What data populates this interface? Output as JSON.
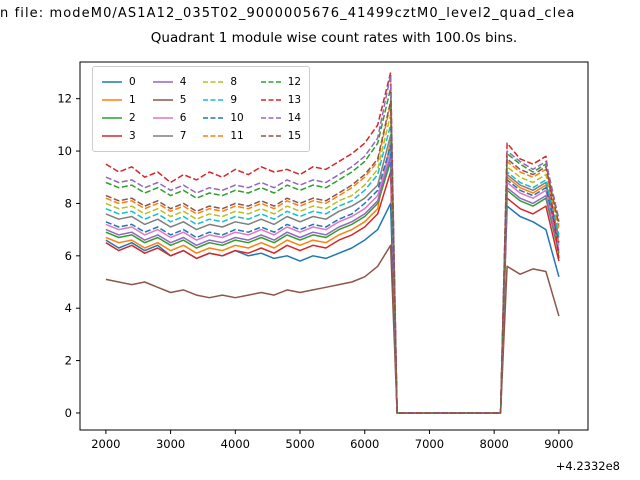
{
  "header": {
    "file_line": "n file: modeM0/AS1A12_035T02_9000005676_41499cztM0_level2_quad_clea",
    "title": "Quadrant 1 module wise count rates with 100.0s bins."
  },
  "chart_data": {
    "type": "line",
    "title": "Quadrant 1 module wise count rates with 100.0s bins.",
    "xlabel": "",
    "ylabel": "",
    "x_offset_label": "+4.2332e8",
    "xlim": [
      1600,
      9450
    ],
    "ylim": [
      -0.65,
      13.4
    ],
    "xticks": [
      2000,
      3000,
      4000,
      5000,
      6000,
      7000,
      8000,
      9000
    ],
    "yticks": [
      0,
      2,
      4,
      6,
      8,
      10,
      12
    ],
    "grid": false,
    "legend_position": "upper left",
    "legend_columns": 4,
    "x": [
      2000,
      2200,
      2400,
      2600,
      2800,
      3000,
      3200,
      3400,
      3600,
      3800,
      4000,
      4200,
      4400,
      4600,
      4800,
      5000,
      5200,
      5400,
      5600,
      5800,
      6000,
      6200,
      6400,
      6500,
      6600,
      6800,
      7000,
      7200,
      7400,
      7600,
      7800,
      8000,
      8100,
      8200,
      8400,
      8600,
      8800,
      9000
    ],
    "series": [
      {
        "name": "0",
        "color": "#1f77b4",
        "dash": false,
        "values": [
          6.6,
          6.3,
          6.5,
          6.2,
          6.4,
          6.0,
          6.2,
          5.9,
          6.1,
          6.0,
          6.2,
          6.0,
          6.1,
          5.9,
          6.0,
          5.8,
          6.0,
          5.9,
          6.1,
          6.3,
          6.6,
          7.0,
          8.0,
          0,
          0,
          0,
          0,
          0,
          0,
          0,
          0,
          0,
          0,
          7.9,
          7.5,
          7.3,
          7.0,
          5.2
        ]
      },
      {
        "name": "1",
        "color": "#ff7f0e",
        "dash": false,
        "values": [
          6.7,
          6.5,
          6.6,
          6.3,
          6.5,
          6.2,
          6.4,
          6.1,
          6.3,
          6.2,
          6.4,
          6.3,
          6.5,
          6.3,
          6.6,
          6.4,
          6.6,
          6.5,
          6.8,
          7.0,
          7.3,
          7.8,
          10.4,
          0,
          0,
          0,
          0,
          0,
          0,
          0,
          0,
          0,
          0,
          9.0,
          8.6,
          8.4,
          8.7,
          6.5
        ]
      },
      {
        "name": "2",
        "color": "#2ca02c",
        "dash": false,
        "values": [
          6.9,
          6.7,
          6.8,
          6.5,
          6.7,
          6.4,
          6.6,
          6.3,
          6.5,
          6.4,
          6.6,
          6.5,
          6.7,
          6.5,
          6.8,
          6.6,
          6.8,
          6.7,
          7.0,
          7.2,
          7.5,
          8.0,
          9.6,
          0,
          0,
          0,
          0,
          0,
          0,
          0,
          0,
          0,
          0,
          8.5,
          8.1,
          7.9,
          8.2,
          6.1
        ]
      },
      {
        "name": "3",
        "color": "#d62728",
        "dash": false,
        "values": [
          6.5,
          6.2,
          6.4,
          6.1,
          6.3,
          6.0,
          6.2,
          5.9,
          6.1,
          6.0,
          6.2,
          6.1,
          6.3,
          6.1,
          6.4,
          6.2,
          6.4,
          6.3,
          6.6,
          6.8,
          7.1,
          7.6,
          9.2,
          0,
          0,
          0,
          0,
          0,
          0,
          0,
          0,
          0,
          0,
          8.2,
          7.8,
          7.6,
          7.9,
          5.8
        ]
      },
      {
        "name": "4",
        "color": "#9467bd",
        "dash": false,
        "values": [
          7.0,
          6.8,
          6.9,
          6.6,
          6.8,
          6.5,
          6.7,
          6.4,
          6.6,
          6.5,
          6.7,
          6.6,
          6.8,
          6.6,
          6.9,
          6.7,
          6.9,
          6.8,
          7.1,
          7.3,
          7.6,
          8.1,
          9.8,
          0,
          0,
          0,
          0,
          0,
          0,
          0,
          0,
          0,
          0,
          8.6,
          8.2,
          8.0,
          8.3,
          6.2
        ]
      },
      {
        "name": "5",
        "color": "#8c564b",
        "dash": false,
        "values": [
          5.1,
          5.0,
          4.9,
          5.0,
          4.8,
          4.6,
          4.7,
          4.5,
          4.4,
          4.5,
          4.4,
          4.5,
          4.6,
          4.5,
          4.7,
          4.6,
          4.7,
          4.8,
          4.9,
          5.0,
          5.2,
          5.6,
          6.4,
          0,
          0,
          0,
          0,
          0,
          0,
          0,
          0,
          0,
          0,
          5.6,
          5.3,
          5.5,
          5.4,
          3.7
        ]
      },
      {
        "name": "6",
        "color": "#e377c2",
        "dash": false,
        "values": [
          7.2,
          7.0,
          7.1,
          6.8,
          7.0,
          6.7,
          6.9,
          6.6,
          6.8,
          6.7,
          6.9,
          6.8,
          7.0,
          6.8,
          7.1,
          6.9,
          7.1,
          7.0,
          7.3,
          7.5,
          7.8,
          8.3,
          10.0,
          0,
          0,
          0,
          0,
          0,
          0,
          0,
          0,
          0,
          0,
          8.8,
          8.4,
          8.2,
          8.5,
          6.4
        ]
      },
      {
        "name": "7",
        "color": "#7f7f7f",
        "dash": false,
        "values": [
          7.6,
          7.4,
          7.5,
          7.2,
          7.4,
          7.1,
          7.3,
          7.0,
          7.2,
          7.1,
          7.3,
          7.2,
          7.4,
          7.2,
          7.5,
          7.3,
          7.5,
          7.4,
          7.7,
          7.9,
          8.2,
          8.7,
          10.6,
          0,
          0,
          0,
          0,
          0,
          0,
          0,
          0,
          0,
          0,
          9.1,
          8.7,
          8.5,
          8.8,
          6.7
        ]
      },
      {
        "name": "8",
        "color": "#bcbd22",
        "dash": true,
        "values": [
          8.0,
          7.8,
          7.9,
          7.6,
          7.8,
          7.5,
          7.7,
          7.4,
          7.6,
          7.5,
          7.7,
          7.6,
          7.8,
          7.6,
          7.9,
          7.7,
          7.9,
          7.8,
          8.1,
          8.3,
          8.7,
          9.3,
          11.4,
          0,
          0,
          0,
          0,
          0,
          0,
          0,
          0,
          0,
          0,
          9.4,
          9.0,
          8.8,
          9.1,
          7.0
        ]
      },
      {
        "name": "9",
        "color": "#17becf",
        "dash": true,
        "values": [
          7.8,
          7.6,
          7.7,
          7.4,
          7.6,
          7.3,
          7.5,
          7.2,
          7.4,
          7.3,
          7.5,
          7.4,
          7.6,
          7.4,
          7.7,
          7.5,
          7.7,
          7.6,
          7.9,
          8.1,
          8.5,
          9.1,
          11.0,
          0,
          0,
          0,
          0,
          0,
          0,
          0,
          0,
          0,
          0,
          9.2,
          8.8,
          8.6,
          8.9,
          6.8
        ]
      },
      {
        "name": "10",
        "color": "#1f77b4",
        "dash": true,
        "values": [
          7.3,
          7.1,
          7.2,
          6.9,
          7.1,
          6.8,
          7.0,
          6.7,
          6.9,
          6.8,
          7.0,
          6.9,
          7.1,
          6.9,
          7.2,
          7.0,
          7.2,
          7.1,
          7.4,
          7.6,
          8.0,
          8.5,
          10.2,
          0,
          0,
          0,
          0,
          0,
          0,
          0,
          0,
          0,
          0,
          8.9,
          8.5,
          8.3,
          8.6,
          6.5
        ]
      },
      {
        "name": "11",
        "color": "#ff7f0e",
        "dash": true,
        "values": [
          8.2,
          8.0,
          8.1,
          7.8,
          8.0,
          7.7,
          7.9,
          7.6,
          7.8,
          7.7,
          7.9,
          7.8,
          8.0,
          7.8,
          8.1,
          7.9,
          8.1,
          8.0,
          8.3,
          8.6,
          9.0,
          9.6,
          11.8,
          0,
          0,
          0,
          0,
          0,
          0,
          0,
          0,
          0,
          0,
          9.6,
          9.2,
          9.0,
          9.3,
          7.1
        ]
      },
      {
        "name": "12",
        "color": "#2ca02c",
        "dash": true,
        "values": [
          8.8,
          8.6,
          8.7,
          8.4,
          8.6,
          8.3,
          8.5,
          8.2,
          8.4,
          8.3,
          8.5,
          8.4,
          8.6,
          8.4,
          8.7,
          8.5,
          8.7,
          8.6,
          8.9,
          9.2,
          9.6,
          10.3,
          12.4,
          0,
          0,
          0,
          0,
          0,
          0,
          0,
          0,
          0,
          0,
          9.9,
          9.5,
          9.2,
          9.5,
          7.3
        ]
      },
      {
        "name": "13",
        "color": "#d62728",
        "dash": true,
        "values": [
          9.5,
          9.2,
          9.4,
          9.0,
          9.2,
          8.8,
          9.1,
          8.9,
          9.2,
          9.0,
          9.3,
          9.1,
          9.4,
          9.2,
          9.3,
          9.1,
          9.4,
          9.3,
          9.6,
          9.9,
          10.3,
          11.0,
          13.0,
          0,
          0,
          0,
          0,
          0,
          0,
          0,
          0,
          0,
          0,
          10.3,
          9.7,
          9.5,
          9.8,
          5.9
        ]
      },
      {
        "name": "14",
        "color": "#9467bd",
        "dash": true,
        "values": [
          9.0,
          8.8,
          8.9,
          8.6,
          8.8,
          8.5,
          8.7,
          8.4,
          8.6,
          8.5,
          8.7,
          8.6,
          8.8,
          8.6,
          8.9,
          8.7,
          8.9,
          8.8,
          9.1,
          9.4,
          9.8,
          10.5,
          12.9,
          0,
          0,
          0,
          0,
          0,
          0,
          0,
          0,
          0,
          0,
          10.0,
          9.6,
          9.3,
          9.6,
          7.4
        ]
      },
      {
        "name": "15",
        "color": "#8c564b",
        "dash": true,
        "values": [
          8.3,
          8.1,
          8.2,
          7.9,
          8.1,
          7.8,
          8.0,
          7.7,
          7.9,
          7.8,
          8.0,
          7.9,
          8.1,
          7.9,
          8.2,
          8.0,
          8.2,
          8.1,
          8.4,
          8.7,
          9.1,
          9.7,
          11.9,
          0,
          0,
          0,
          0,
          0,
          0,
          0,
          0,
          0,
          0,
          9.7,
          9.3,
          9.1,
          9.4,
          7.2
        ]
      }
    ]
  }
}
